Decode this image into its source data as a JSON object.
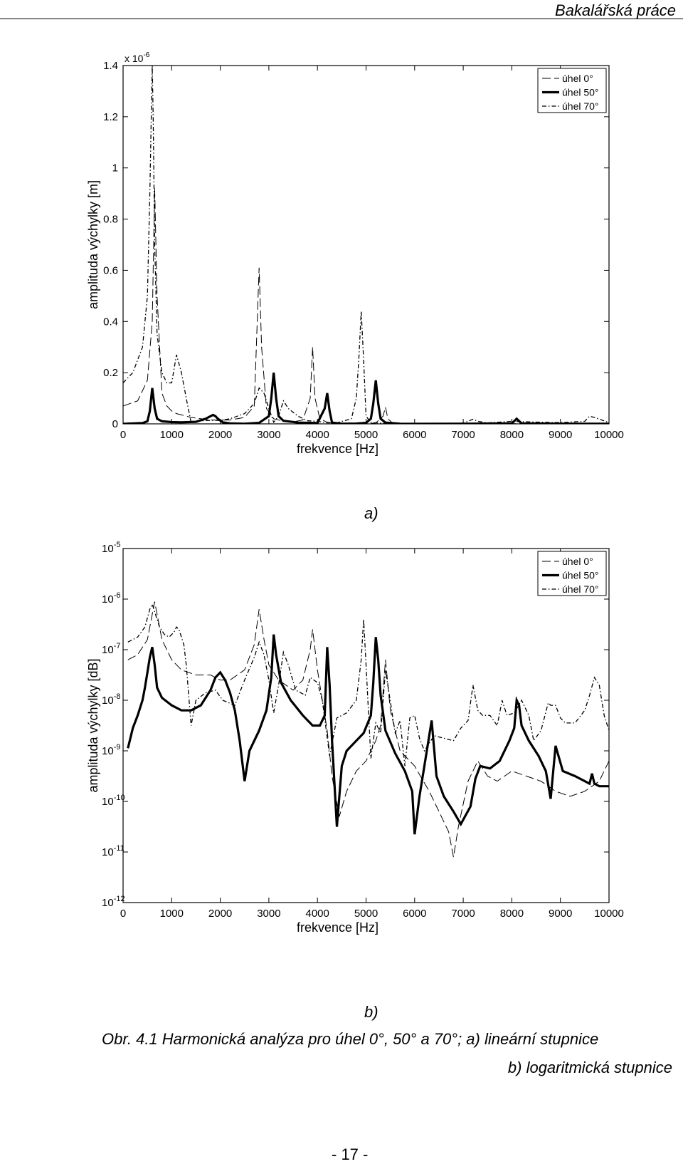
{
  "header": {
    "title": "Bakalářská práce"
  },
  "chart_data": [
    {
      "type": "line",
      "label": "a)",
      "scale": "linear",
      "exponent_label": "x 10",
      "exponent_sup": "-6",
      "xlabel": "frekvence  [Hz]",
      "ylabel": "amplituda výchylky  [m]",
      "xlim": [
        0,
        10000
      ],
      "ylim": [
        0,
        1.4
      ],
      "xticks": [
        0,
        1000,
        2000,
        3000,
        4000,
        5000,
        6000,
        7000,
        8000,
        9000,
        10000
      ],
      "yticks": [
        0,
        0.2,
        0.4,
        0.6,
        0.8,
        1,
        1.2,
        1.4
      ],
      "ytick_labels": [
        "0",
        "0.2",
        "0.4",
        "0.6",
        "0.8",
        "1",
        "1.2",
        "1.4"
      ],
      "legend": {
        "position": "top-right"
      },
      "series": [
        {
          "name": "úhel 0°",
          "style": "dashed",
          "x": [
            0,
            300,
            500,
            600,
            650,
            700,
            800,
            900,
            1000,
            1100,
            1200,
            1400,
            1600,
            1800,
            2000,
            2200,
            2500,
            2700,
            2800,
            2850,
            2950,
            3100,
            3300,
            3500,
            3700,
            3850,
            3900,
            3950,
            4050,
            4200,
            4400,
            4600,
            4800,
            5000,
            5200,
            5350,
            5400,
            5450,
            5550,
            5700,
            6000,
            6500,
            7000,
            7500,
            8000,
            8500,
            9000,
            9500,
            10000
          ],
          "y": [
            0.07,
            0.09,
            0.17,
            0.4,
            0.92,
            0.5,
            0.12,
            0.07,
            0.05,
            0.04,
            0.035,
            0.025,
            0.02,
            0.015,
            0.015,
            0.015,
            0.025,
            0.07,
            0.61,
            0.3,
            0.06,
            0.02,
            0.01,
            0.008,
            0.015,
            0.1,
            0.3,
            0.1,
            0.02,
            0.006,
            0.002,
            0.001,
            0.001,
            0.002,
            0.003,
            0.03,
            0.065,
            0.02,
            0.002,
            0.001,
            0.001,
            0.0005,
            0.0005,
            0.0005,
            0.0005,
            0.0005,
            0.0005,
            0.0005,
            0.0005
          ]
        },
        {
          "name": "úhel 50°",
          "style": "solid",
          "x": [
            0,
            400,
            500,
            550,
            600,
            650,
            700,
            800,
            1000,
            1200,
            1500,
            1700,
            1850,
            1900,
            1950,
            2050,
            2200,
            2500,
            2800,
            3000,
            3050,
            3100,
            3150,
            3200,
            3300,
            3600,
            4000,
            4150,
            4200,
            4250,
            4300,
            4500,
            4800,
            5000,
            5100,
            5150,
            5200,
            5250,
            5300,
            5400,
            5700,
            6000,
            7000,
            8000,
            8100,
            8200,
            9000,
            9600,
            9700,
            10000
          ],
          "y": [
            0.0001,
            0.003,
            0.01,
            0.05,
            0.14,
            0.06,
            0.02,
            0.01,
            0.007,
            0.006,
            0.008,
            0.02,
            0.035,
            0.03,
            0.02,
            0.006,
            0.002,
            0.0003,
            0.004,
            0.03,
            0.1,
            0.2,
            0.1,
            0.03,
            0.012,
            0.005,
            0.003,
            0.06,
            0.12,
            0.05,
            0.005,
            0.0005,
            0.001,
            0.004,
            0.02,
            0.08,
            0.17,
            0.08,
            0.02,
            0.005,
            0.0005,
            2e-05,
            0.0005,
            0.002,
            0.02,
            0.002,
            0.0003,
            0.0002,
            0.0004,
            0.0002
          ]
        },
        {
          "name": "úhel 70°",
          "style": "dashdot",
          "x": [
            0,
            200,
            400,
            500,
            550,
            580,
            600,
            620,
            650,
            700,
            800,
            900,
            1000,
            1100,
            1200,
            1300,
            1400,
            1500,
            1700,
            1900,
            2000,
            2200,
            2500,
            2700,
            2800,
            2900,
            3000,
            3100,
            3200,
            3300,
            3400,
            3600,
            3800,
            4000,
            4200,
            4400,
            4700,
            4800,
            4850,
            4900,
            4950,
            5000,
            5100,
            5300,
            5500,
            5700,
            6000,
            6500,
            7000,
            7100,
            7200,
            7300,
            7500,
            8000,
            8500,
            9000,
            9500,
            9600,
            9700,
            10000
          ],
          "y": [
            0.16,
            0.2,
            0.3,
            0.5,
            0.9,
            1.2,
            1.4,
            1.2,
            0.7,
            0.35,
            0.2,
            0.16,
            0.16,
            0.27,
            0.2,
            0.1,
            0.005,
            0.01,
            0.013,
            0.014,
            0.013,
            0.02,
            0.04,
            0.08,
            0.14,
            0.12,
            0.06,
            0.006,
            0.03,
            0.09,
            0.06,
            0.03,
            0.012,
            0.01,
            0.004,
            0.004,
            0.02,
            0.1,
            0.25,
            0.44,
            0.25,
            0.03,
            0.005,
            0.003,
            0.003,
            0.001,
            0.002,
            0.0015,
            0.003,
            0.01,
            0.018,
            0.01,
            0.004,
            0.01,
            0.007,
            0.005,
            0.01,
            0.03,
            0.025,
            0.005
          ]
        }
      ]
    },
    {
      "type": "line",
      "label": "b)",
      "scale": "log",
      "xlabel": "frekvence  [Hz]",
      "ylabel": "amplituda výchylky  [dB]",
      "xlim": [
        0,
        10000
      ],
      "ylim": [
        -12,
        -5
      ],
      "xticks": [
        0,
        1000,
        2000,
        3000,
        4000,
        5000,
        6000,
        7000,
        8000,
        9000,
        10000
      ],
      "yticks": [
        -12,
        -11,
        -10,
        -9,
        -8,
        -7,
        -6,
        -5
      ],
      "ytick_labels": [
        "-12",
        "-11",
        "-10",
        "-9",
        "-8",
        "-7",
        "-6",
        "-5"
      ],
      "ytick_base": "10",
      "legend": {
        "position": "top-right"
      },
      "series": [
        {
          "name": "úhel 0°",
          "style": "dashed",
          "x": [
            100,
            300,
            500,
            650,
            800,
            1000,
            1200,
            1500,
            1800,
            2000,
            2200,
            2500,
            2700,
            2800,
            2900,
            3000,
            3200,
            3500,
            3700,
            3850,
            3900,
            4000,
            4200,
            4300,
            4450,
            4600,
            4800,
            5000,
            5200,
            5300,
            5400,
            5500,
            5700,
            6000,
            6300,
            6500,
            6700,
            6800,
            6900,
            7100,
            7300,
            7500,
            7700,
            8000,
            8300,
            8600,
            8900,
            9200,
            9500,
            9800,
            10000
          ],
          "y": [
            -7.2,
            -7.1,
            -6.8,
            -6.05,
            -6.8,
            -7.2,
            -7.4,
            -7.5,
            -7.5,
            -7.6,
            -7.6,
            -7.4,
            -6.9,
            -6.2,
            -6.8,
            -7.3,
            -7.6,
            -7.8,
            -7.6,
            -7.0,
            -6.6,
            -7.4,
            -8.6,
            -9.5,
            -10.3,
            -9.8,
            -9.4,
            -9.2,
            -8.8,
            -8.5,
            -7.2,
            -8.2,
            -9.0,
            -9.3,
            -9.8,
            -10.2,
            -10.6,
            -11.1,
            -10.5,
            -9.6,
            -9.2,
            -9.5,
            -9.6,
            -9.4,
            -9.5,
            -9.6,
            -9.8,
            -9.9,
            -9.8,
            -9.6,
            -9.2
          ]
        },
        {
          "name": "úhel 50°",
          "style": "solid",
          "x": [
            100,
            200,
            300,
            400,
            450,
            500,
            550,
            600,
            650,
            700,
            800,
            1000,
            1200,
            1400,
            1600,
            1800,
            1900,
            2000,
            2100,
            2200,
            2300,
            2400,
            2500,
            2600,
            2800,
            2950,
            3050,
            3100,
            3150,
            3250,
            3450,
            3700,
            3900,
            4050,
            4150,
            4200,
            4250,
            4300,
            4400,
            4500,
            4600,
            4800,
            4950,
            5100,
            5150,
            5200,
            5250,
            5300,
            5400,
            5600,
            5800,
            5950,
            6000,
            6100,
            6200,
            6350,
            6450,
            6600,
            6800,
            6950,
            7150,
            7250,
            7350,
            7550,
            7750,
            7950,
            8050,
            8100,
            8150,
            8200,
            8350,
            8550,
            8700,
            8800,
            8900,
            9050,
            9300,
            9500,
            9600,
            9650,
            9700,
            9800,
            10000
          ],
          "y": [
            -8.95,
            -8.55,
            -8.3,
            -8.0,
            -7.75,
            -7.45,
            -7.15,
            -6.95,
            -7.3,
            -7.75,
            -7.95,
            -8.1,
            -8.2,
            -8.2,
            -8.1,
            -7.8,
            -7.55,
            -7.45,
            -7.6,
            -7.85,
            -8.2,
            -8.8,
            -9.6,
            -9.0,
            -8.6,
            -8.2,
            -7.55,
            -6.7,
            -7.1,
            -7.65,
            -8.0,
            -8.3,
            -8.5,
            -8.5,
            -8.3,
            -6.95,
            -7.7,
            -8.8,
            -10.5,
            -9.3,
            -9.0,
            -8.8,
            -8.65,
            -8.3,
            -7.65,
            -6.75,
            -7.2,
            -7.9,
            -8.6,
            -9.05,
            -9.4,
            -9.8,
            -10.65,
            -9.9,
            -9.3,
            -8.4,
            -9.5,
            -9.9,
            -10.2,
            -10.45,
            -10.1,
            -9.55,
            -9.3,
            -9.35,
            -9.2,
            -8.8,
            -8.55,
            -8.0,
            -8.1,
            -8.5,
            -8.8,
            -9.1,
            -9.4,
            -9.95,
            -8.9,
            -9.4,
            -9.5,
            -9.6,
            -9.65,
            -9.45,
            -9.65,
            -9.7,
            -9.7
          ]
        },
        {
          "name": "úhel 70°",
          "style": "dashdot",
          "x": [
            100,
            300,
            450,
            550,
            600,
            650,
            750,
            850,
            950,
            1050,
            1100,
            1150,
            1250,
            1300,
            1400,
            1500,
            1700,
            1900,
            2050,
            2300,
            2500,
            2700,
            2800,
            2900,
            3000,
            3100,
            3200,
            3300,
            3400,
            3550,
            3750,
            3850,
            4000,
            4100,
            4250,
            4400,
            4600,
            4800,
            4900,
            4950,
            5000,
            5100,
            5200,
            5300,
            5400,
            5600,
            5700,
            5800,
            5900,
            6000,
            6100,
            6200,
            6400,
            6600,
            6800,
            6950,
            7100,
            7200,
            7300,
            7400,
            7550,
            7700,
            7800,
            7900,
            8050,
            8200,
            8350,
            8450,
            8600,
            8750,
            8800,
            8900,
            9000,
            9100,
            9300,
            9500,
            9600,
            9700,
            9800,
            9900,
            10000
          ],
          "y": [
            -6.85,
            -6.75,
            -6.55,
            -6.2,
            -6.1,
            -6.25,
            -6.55,
            -6.7,
            -6.75,
            -6.65,
            -6.55,
            -6.6,
            -6.9,
            -7.3,
            -8.5,
            -8.0,
            -7.85,
            -7.8,
            -8.0,
            -8.1,
            -7.6,
            -7.15,
            -6.85,
            -7.1,
            -7.6,
            -8.25,
            -7.7,
            -7.05,
            -7.3,
            -7.8,
            -7.9,
            -7.55,
            -7.65,
            -8.0,
            -9.1,
            -8.35,
            -8.25,
            -8.0,
            -7.2,
            -6.4,
            -7.3,
            -9.15,
            -8.45,
            -8.65,
            -7.4,
            -8.65,
            -8.4,
            -9.3,
            -8.35,
            -8.3,
            -8.75,
            -9.0,
            -8.7,
            -8.75,
            -8.8,
            -8.55,
            -8.4,
            -7.7,
            -8.2,
            -8.3,
            -8.3,
            -8.5,
            -8.0,
            -8.3,
            -8.25,
            -8.0,
            -8.3,
            -8.8,
            -8.6,
            -8.05,
            -8.1,
            -8.1,
            -8.35,
            -8.45,
            -8.45,
            -8.2,
            -7.9,
            -7.55,
            -7.7,
            -8.3,
            -8.6
          ]
        }
      ]
    }
  ],
  "labels": {
    "a": "a)",
    "b": "b)"
  },
  "caption": {
    "line1": "Obr. 4.1 Harmonická analýza pro úhel 0°, 50° a 70°; a) lineární stupnice",
    "line2": "b) logaritmická stupnice"
  },
  "page": {
    "number": "- 17 -"
  }
}
